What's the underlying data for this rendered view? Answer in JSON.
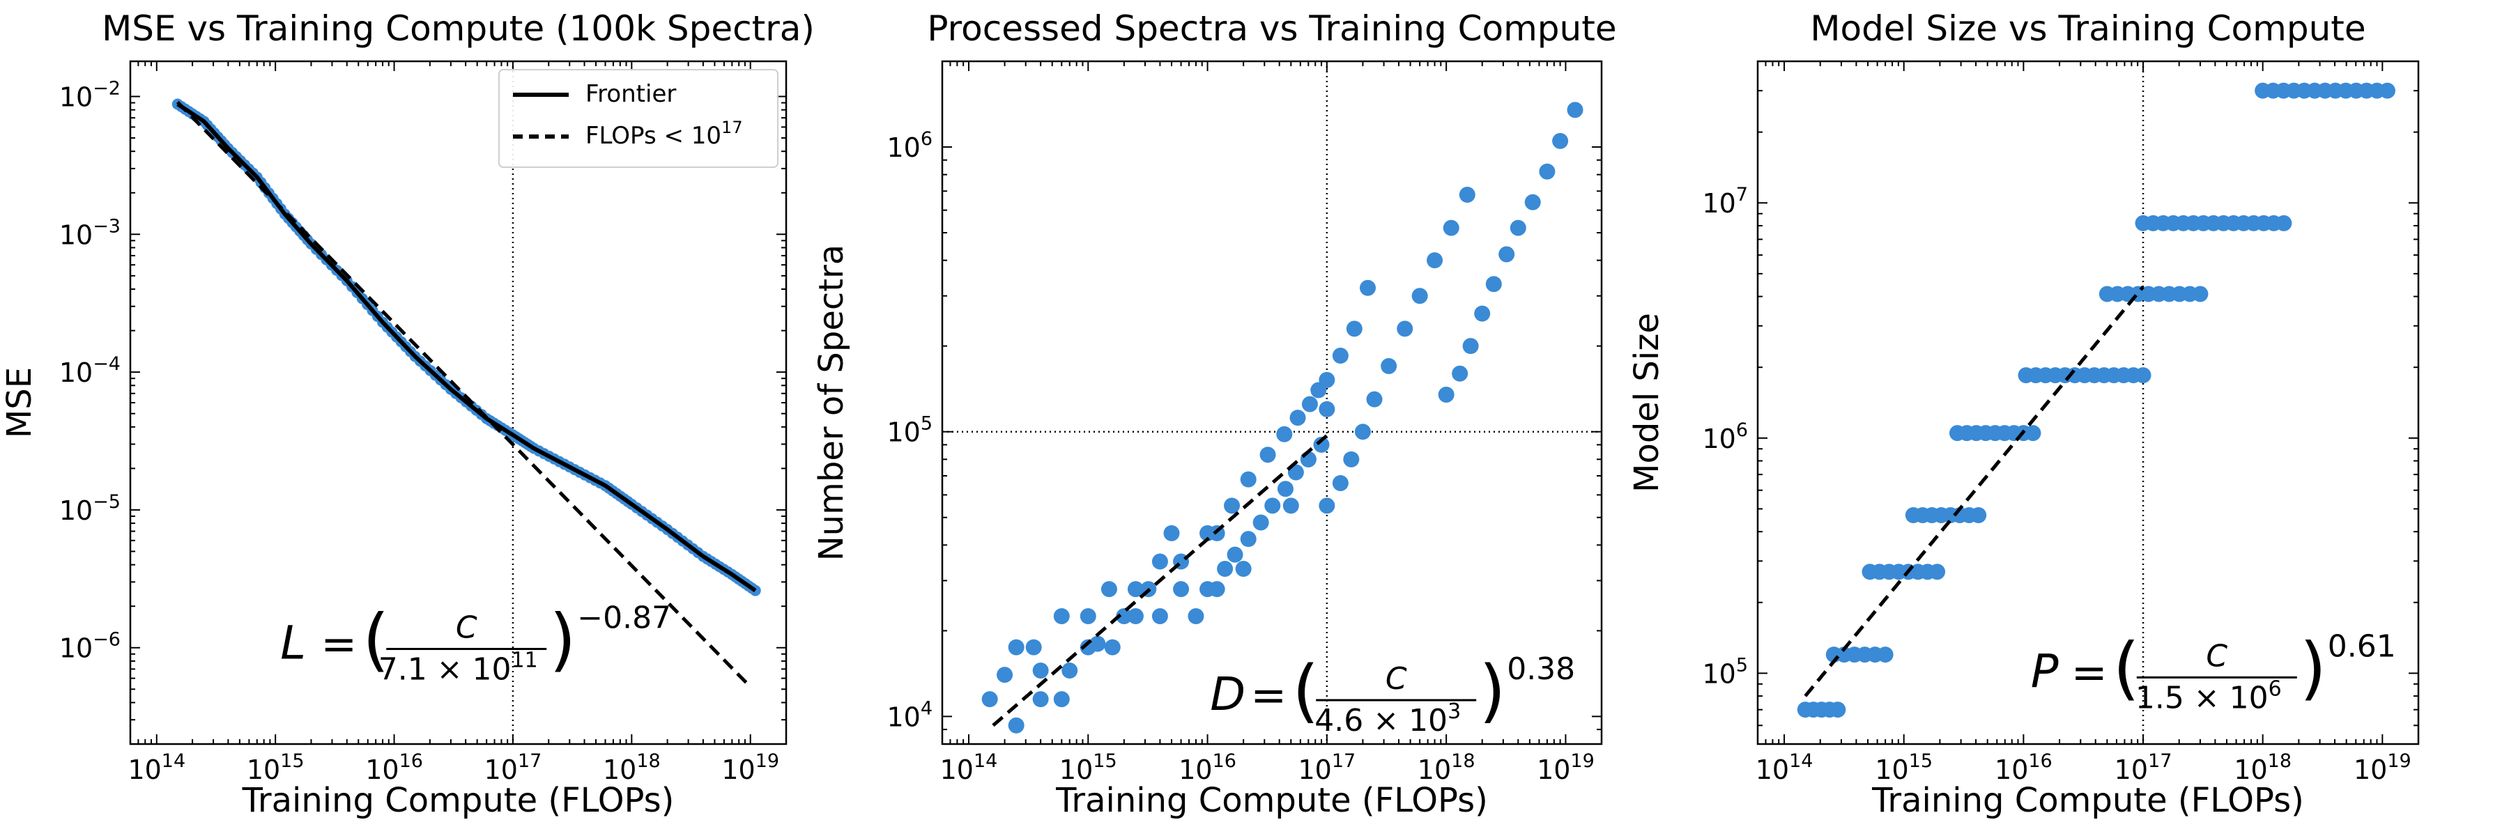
{
  "colors": {
    "points": "#3a8ad6",
    "frontier": "#000000",
    "axes": "#000000"
  },
  "chart_data": [
    {
      "type": "scatter",
      "title": "MSE vs Training Compute (100k Spectra)",
      "xlabel": "Training Compute (FLOPs)",
      "ylabel": "MSE",
      "xscale": "log",
      "yscale": "log",
      "xlim": [
        60000000000000.0,
        2e+19
      ],
      "ylim": [
        2e-07,
        0.018
      ],
      "xticks": [
        {
          "value": 100000000000000.0,
          "base": "10",
          "exp": "14"
        },
        {
          "value": 1000000000000000.0,
          "base": "10",
          "exp": "15"
        },
        {
          "value": 1e+16,
          "base": "10",
          "exp": "16"
        },
        {
          "value": 1e+17,
          "base": "10",
          "exp": "17"
        },
        {
          "value": 1e+18,
          "base": "10",
          "exp": "18"
        },
        {
          "value": 1e+19,
          "base": "10",
          "exp": "19"
        }
      ],
      "yticks": [
        {
          "value": 1e-06,
          "base": "10",
          "exp": "−6"
        },
        {
          "value": 1e-05,
          "base": "10",
          "exp": "−5"
        },
        {
          "value": 0.0001,
          "base": "10",
          "exp": "−4"
        },
        {
          "value": 0.001,
          "base": "10",
          "exp": "−3"
        },
        {
          "value": 0.01,
          "base": "10",
          "exp": "−2"
        }
      ],
      "vline": 1e+17,
      "hline": null,
      "points_from_frontier": true,
      "frontier": {
        "name": "Frontier",
        "x": [
          150000000000000.0,
          250000000000000.0,
          400000000000000.0,
          700000000000000.0,
          1200000000000000.0,
          2000000000000000.0,
          4000000000000000.0,
          8000000000000000.0,
          1.5e+16,
          3e+16,
          6e+16,
          1e+17,
          1.5e+17,
          3e+17,
          6e+17,
          1e+18,
          2e+18,
          4e+18,
          7e+18,
          1.1e+19
        ],
        "y": [
          0.0088,
          0.0066,
          0.0042,
          0.0026,
          0.0014,
          0.00085,
          0.00046,
          0.00023,
          0.00013,
          7.5e-05,
          4.6e-05,
          3.5e-05,
          2.8e-05,
          2.05e-05,
          1.5e-05,
          1.1e-05,
          7.2e-06,
          4.6e-06,
          3.4e-06,
          2.6e-06
        ]
      },
      "fit": {
        "name": "FLOPs < 10¹⁷",
        "x": [
          150000000000000.0,
          1e+19
        ],
        "y": [
          0.0091,
          5.2e-07
        ]
      },
      "legend": {
        "position": "top-right",
        "entries": [
          {
            "style": "solid",
            "label": "Frontier",
            "sup": ""
          },
          {
            "style": "dashed",
            "label": "FLOPs < 10",
            "sup": "17"
          }
        ]
      },
      "equation": {
        "lhs": "L",
        "numerator": "C",
        "denominator": "7.1 × 10",
        "den_exp": "11",
        "exponent": "−0.87"
      },
      "equation_anchor": [
        1100000000000000.0,
        1.05e-06
      ]
    },
    {
      "type": "scatter",
      "title": "Processed Spectra vs Training Compute",
      "xlabel": "Training Compute (FLOPs)",
      "ylabel": "Number of Spectra",
      "xscale": "log",
      "yscale": "log",
      "xlim": [
        60000000000000.0,
        2e+19
      ],
      "ylim": [
        8000.0,
        2000000.0
      ],
      "xticks": [
        {
          "value": 100000000000000.0,
          "base": "10",
          "exp": "14"
        },
        {
          "value": 1000000000000000.0,
          "base": "10",
          "exp": "15"
        },
        {
          "value": 1e+16,
          "base": "10",
          "exp": "16"
        },
        {
          "value": 1e+17,
          "base": "10",
          "exp": "17"
        },
        {
          "value": 1e+18,
          "base": "10",
          "exp": "18"
        },
        {
          "value": 1e+19,
          "base": "10",
          "exp": "19"
        }
      ],
      "yticks": [
        {
          "value": 10000.0,
          "base": "10",
          "exp": "4"
        },
        {
          "value": 100000.0,
          "base": "10",
          "exp": "5"
        },
        {
          "value": 1000000.0,
          "base": "10",
          "exp": "6"
        }
      ],
      "vline": 1e+17,
      "hline": 100000.0,
      "points": {
        "x": [
          150000000000000.0,
          250000000000000.0,
          400000000000000.0,
          600000000000000.0,
          1000000000000000.0,
          1600000000000000.0,
          2500000000000000.0,
          4000000000000000.0,
          6000000000000000.0,
          1e+16,
          200000000000000.0,
          350000000000000.0,
          600000000000000.0,
          1000000000000000.0,
          1500000000000000.0,
          2500000000000000.0,
          4000000000000000.0,
          6000000000000000.0,
          1e+16,
          1.6e+16,
          250000000000000.0,
          400000000000000.0,
          700000000000000.0,
          1200000000000000.0,
          2000000000000000.0,
          3200000000000000.0,
          5000000000000000.0,
          8000000000000000.0,
          1.2e+16,
          2e+16,
          1.4e+16,
          1.7e+16,
          2.2e+16,
          2.8e+16,
          3.5e+16,
          4.5e+16,
          5.5e+16,
          7e+16,
          9e+16,
          1.2e+16,
          2.2e+16,
          3.2e+16,
          4.4e+16,
          5.7e+16,
          7.2e+16,
          8.5e+16,
          1e+17,
          1e+17,
          1.3e+17,
          1.6e+17,
          2e+17,
          2.5e+17,
          3.3e+17,
          4.5e+17,
          6e+17,
          8e+17,
          1.1e+18,
          1.5e+18,
          5e+16,
          7e+16,
          1e+17,
          1.3e+17,
          1.7e+17,
          2.2e+17,
          1e+18,
          1.3e+18,
          1.6e+18,
          2e+18,
          2.5e+18,
          3.2e+18,
          4e+18,
          5.3e+18,
          7e+18,
          9e+18,
          1.2e+19
        ],
        "y": [
          11500,
          17500,
          14500,
          11500,
          22500,
          17500,
          28000,
          22500,
          35000,
          28000,
          14000,
          17500,
          22500,
          17500,
          28000,
          22500,
          35000,
          28000,
          44000,
          55000,
          9300,
          11500,
          14500,
          18000,
          22500,
          28000,
          44000,
          22500,
          28000,
          33000,
          33000,
          37000,
          42000,
          48000,
          55000,
          63000,
          72000,
          80000,
          90000,
          44000,
          68000,
          83000,
          98000,
          112000,
          125000,
          140000,
          152000,
          55000,
          66000,
          80000,
          100000,
          130000,
          170000,
          230000,
          300000,
          400000,
          520000,
          680000,
          55000,
          80000,
          120000,
          185000,
          230000,
          320000,
          135000,
          160000,
          200000,
          260000,
          330000,
          420000,
          520000,
          640000,
          820000,
          1050000,
          1350000
        ]
      },
      "fit": {
        "name": "fit",
        "x": [
          160000000000000.0,
          1e+17
        ],
        "y": [
          9300,
          97000
        ]
      },
      "legend": null,
      "equation": {
        "lhs": "D",
        "numerator": "C",
        "denominator": "4.6 × 10",
        "den_exp": "3",
        "exponent": "0.38"
      },
      "equation_anchor": [
        1.05e+16,
        11800
      ]
    },
    {
      "type": "scatter",
      "title": "Model Size vs Training Compute",
      "xlabel": "Training Compute (FLOPs)",
      "ylabel": "Model Size",
      "xscale": "log",
      "yscale": "log",
      "xlim": [
        60000000000000.0,
        2e+19
      ],
      "ylim": [
        50000.0,
        40000000.0
      ],
      "xticks": [
        {
          "value": 100000000000000.0,
          "base": "10",
          "exp": "14"
        },
        {
          "value": 1000000000000000.0,
          "base": "10",
          "exp": "15"
        },
        {
          "value": 1e+16,
          "base": "10",
          "exp": "16"
        },
        {
          "value": 1e+17,
          "base": "10",
          "exp": "17"
        },
        {
          "value": 1e+18,
          "base": "10",
          "exp": "18"
        },
        {
          "value": 1e+19,
          "base": "10",
          "exp": "19"
        }
      ],
      "yticks": [
        {
          "value": 100000.0,
          "base": "10",
          "exp": "5"
        },
        {
          "value": 1000000.0,
          "base": "10",
          "exp": "6"
        },
        {
          "value": 10000000.0,
          "base": "10",
          "exp": "7"
        }
      ],
      "vline": 1e+17,
      "hline": null,
      "step_points": [
        {
          "y": 70000,
          "x0": 150000000000000.0,
          "x1": 280000000000000.0
        },
        {
          "y": 120000,
          "x0": 260000000000000.0,
          "x1": 700000000000000.0
        },
        {
          "y": 270000,
          "x0": 520000000000000.0,
          "x1": 1900000000000000.0
        },
        {
          "y": 470000,
          "x0": 1200000000000000.0,
          "x1": 4200000000000000.0
        },
        {
          "y": 1050000,
          "x0": 2800000000000000.0,
          "x1": 1.2e+16
        },
        {
          "y": 1850000,
          "x0": 1.05e+16,
          "x1": 1e+17
        },
        {
          "y": 4100000,
          "x0": 5e+16,
          "x1": 3e+17
        },
        {
          "y": 8200000,
          "x0": 1e+17,
          "x1": 1.5e+18
        },
        {
          "y": 30000000,
          "x0": 1e+18,
          "x1": 1.1e+19
        }
      ],
      "fit": {
        "name": "fit",
        "x": [
          150000000000000.0,
          1e+17
        ],
        "y": [
          80000,
          4400000
        ]
      },
      "legend": null,
      "equation": {
        "lhs": "P",
        "numerator": "C",
        "denominator": "1.5 × 10",
        "den_exp": "6",
        "exponent": "0.61"
      },
      "equation_anchor": [
        1.15e+16,
        100000
      ]
    }
  ]
}
